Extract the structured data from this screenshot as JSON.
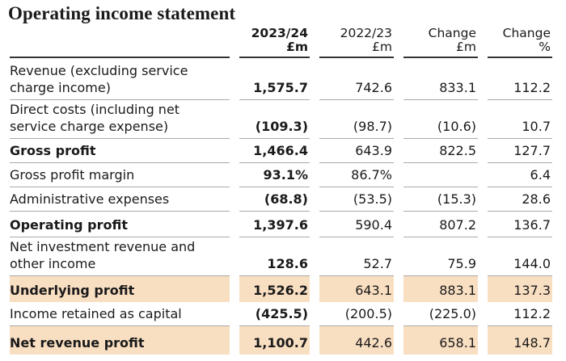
{
  "title": "Operating income statement",
  "table": {
    "columns": [
      {
        "top": "2023/24",
        "unit": "£m"
      },
      {
        "top": "2022/23",
        "unit": "£m"
      },
      {
        "top": "Change",
        "unit": "£m"
      },
      {
        "top": "Change",
        "unit": "%"
      }
    ],
    "rows": [
      [
        "Revenue (excluding service charge income)",
        "1,575.7",
        "742.6",
        "833.1",
        "112.2"
      ],
      [
        "Direct costs (including net service charge expense)",
        "(109.3)",
        "(98.7)",
        "(10.6)",
        "10.7"
      ],
      [
        "Gross profit",
        "1,466.4",
        "643.9",
        "822.5",
        "127.7"
      ],
      [
        "Gross profit margin",
        "93.1%",
        "86.7%",
        null,
        "6.4"
      ],
      [
        "Administrative expenses",
        "(68.8)",
        "(53.5)",
        "(15.3)",
        "28.6"
      ],
      [
        "Operating profit",
        "1,397.6",
        "590.4",
        "807.2",
        "136.7"
      ],
      [
        "Net investment revenue and other income",
        "128.6",
        "52.7",
        "75.9",
        "144.0"
      ],
      [
        "Underlying profit",
        "1,526.2",
        "643.1",
        "883.1",
        "137.3"
      ],
      [
        "Income retained as capital",
        "(425.5)",
        "(200.5)",
        "(225.0)",
        "112.2"
      ],
      [
        "Net revenue profit",
        "1,100.7",
        "442.6",
        "658.1",
        "148.7"
      ]
    ]
  }
}
